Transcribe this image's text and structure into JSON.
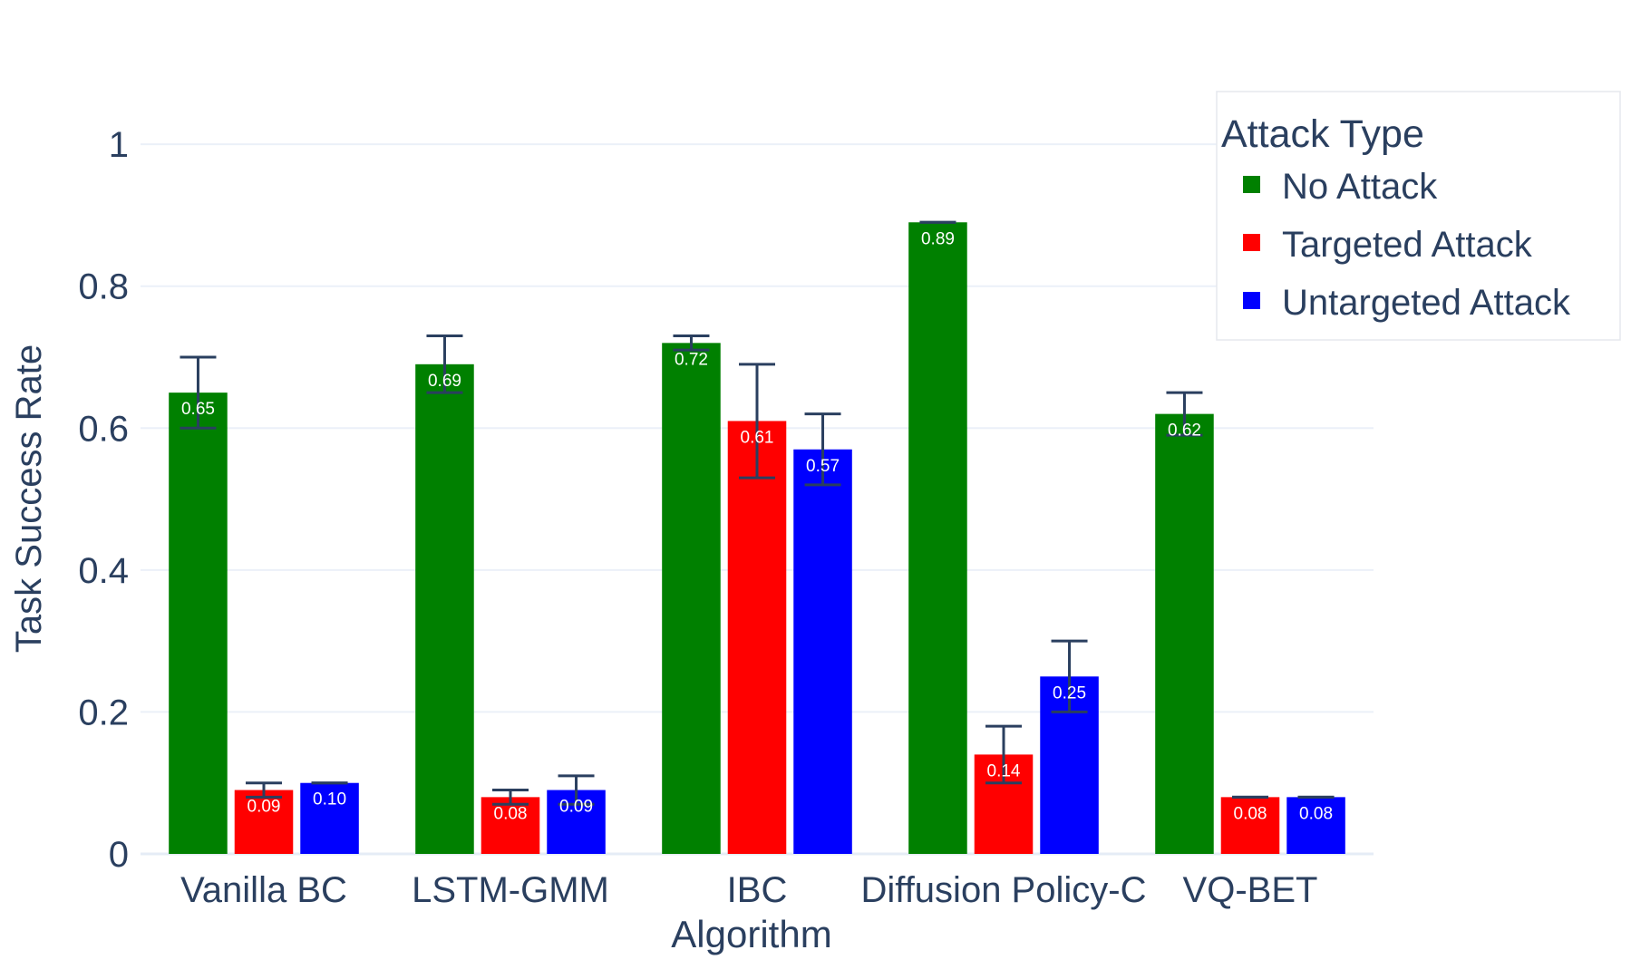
{
  "chart_data": {
    "type": "bar",
    "title": "",
    "xlabel": "Algorithm",
    "ylabel": "Task Success Rate",
    "ylim": [
      0,
      1.05
    ],
    "yticks": [
      {
        "value": 0,
        "label": "0"
      },
      {
        "value": 0.2,
        "label": "0.2"
      },
      {
        "value": 0.4,
        "label": "0.4"
      },
      {
        "value": 0.6,
        "label": "0.6"
      },
      {
        "value": 0.8,
        "label": "0.8"
      },
      {
        "value": 1,
        "label": "1"
      }
    ],
    "grid": true,
    "categories": [
      "Vanilla BC",
      "LSTM-GMM",
      "IBC",
      "Diffusion Policy-C",
      "VQ-BET"
    ],
    "legend": {
      "title": "Attack Type",
      "position": "top-right"
    },
    "series": [
      {
        "name": "No Attack",
        "color": "#008000",
        "values": [
          0.65,
          0.69,
          0.72,
          0.89,
          0.62
        ],
        "labels": [
          "0.65",
          "0.69",
          "0.72",
          "0.89",
          "0.62"
        ],
        "error_low": [
          0.6,
          0.65,
          0.71,
          0.89,
          0.59
        ],
        "error_high": [
          0.7,
          0.73,
          0.73,
          0.89,
          0.65
        ]
      },
      {
        "name": "Targeted Attack",
        "color": "#ff0000",
        "values": [
          0.09,
          0.08,
          0.61,
          0.14,
          0.08
        ],
        "labels": [
          "0.09",
          "0.08",
          "0.61",
          "0.14",
          "0.08"
        ],
        "error_low": [
          0.08,
          0.07,
          0.53,
          0.1,
          0.08
        ],
        "error_high": [
          0.1,
          0.09,
          0.69,
          0.18,
          0.08
        ]
      },
      {
        "name": "Untargeted Attack",
        "color": "#0000ff",
        "values": [
          0.1,
          0.09,
          0.57,
          0.25,
          0.08
        ],
        "labels": [
          "0.10",
          "0.09",
          "0.57",
          "0.25",
          "0.08"
        ],
        "error_low": [
          0.1,
          0.07,
          0.52,
          0.2,
          0.08
        ],
        "error_high": [
          0.1,
          0.11,
          0.62,
          0.3,
          0.08
        ]
      }
    ]
  }
}
